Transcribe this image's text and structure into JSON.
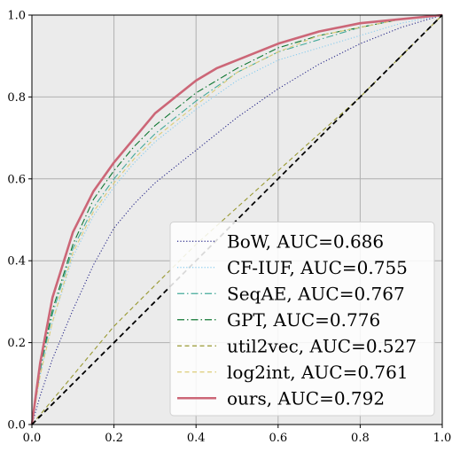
{
  "chart_data": {
    "type": "line",
    "title": "",
    "xlabel": "",
    "ylabel": "",
    "xlim": [
      0,
      1
    ],
    "ylim": [
      0,
      1
    ],
    "xticks": [
      "0.0",
      "0.2",
      "0.4",
      "0.6",
      "0.8",
      "1.0"
    ],
    "yticks": [
      "0.0",
      "0.2",
      "0.4",
      "0.6",
      "0.8",
      "1.0"
    ],
    "grid": true,
    "background": "#ebebeb",
    "legend_position": "lower-right",
    "diagonal": {
      "x": [
        0,
        1
      ],
      "y": [
        0,
        1
      ],
      "color": "#000000",
      "style": "dashed"
    },
    "series": [
      {
        "name": "BoW, AUC=0.686",
        "color": "#2a2a8a",
        "style": "dotted",
        "x": [
          0,
          0.02,
          0.05,
          0.1,
          0.15,
          0.2,
          0.25,
          0.3,
          0.4,
          0.5,
          0.6,
          0.7,
          0.8,
          0.9,
          1.0
        ],
        "y": [
          0,
          0.07,
          0.16,
          0.28,
          0.39,
          0.48,
          0.54,
          0.59,
          0.67,
          0.75,
          0.82,
          0.88,
          0.93,
          0.97,
          1.0
        ]
      },
      {
        "name": "CF-IUF, AUC=0.755",
        "color": "#88ccee",
        "style": "dotted",
        "x": [
          0,
          0.02,
          0.05,
          0.1,
          0.15,
          0.2,
          0.25,
          0.3,
          0.4,
          0.5,
          0.6,
          0.7,
          0.8,
          0.9,
          1.0
        ],
        "y": [
          0,
          0.12,
          0.25,
          0.41,
          0.51,
          0.58,
          0.64,
          0.69,
          0.77,
          0.84,
          0.89,
          0.92,
          0.95,
          0.98,
          1.0
        ]
      },
      {
        "name": "SeqAE, AUC=0.767",
        "color": "#44aa99",
        "style": "dashdot",
        "x": [
          0,
          0.02,
          0.05,
          0.1,
          0.15,
          0.2,
          0.25,
          0.3,
          0.4,
          0.5,
          0.6,
          0.7,
          0.8,
          0.9,
          1.0
        ],
        "y": [
          0,
          0.13,
          0.27,
          0.43,
          0.53,
          0.6,
          0.66,
          0.71,
          0.79,
          0.86,
          0.91,
          0.94,
          0.97,
          0.99,
          1.0
        ]
      },
      {
        "name": "GPT, AUC=0.776",
        "color": "#117733",
        "style": "dashdot",
        "x": [
          0,
          0.02,
          0.05,
          0.1,
          0.15,
          0.2,
          0.25,
          0.3,
          0.4,
          0.5,
          0.6,
          0.7,
          0.8,
          0.9,
          1.0
        ],
        "y": [
          0,
          0.14,
          0.28,
          0.44,
          0.55,
          0.62,
          0.68,
          0.73,
          0.81,
          0.87,
          0.92,
          0.95,
          0.97,
          0.99,
          1.0
        ]
      },
      {
        "name": "util2vec, AUC=0.527",
        "color": "#999933",
        "style": "dashed",
        "x": [
          0,
          0.05,
          0.1,
          0.2,
          0.3,
          0.4,
          0.5,
          0.6,
          0.7,
          0.8,
          0.9,
          1.0
        ],
        "y": [
          0,
          0.06,
          0.12,
          0.24,
          0.34,
          0.44,
          0.53,
          0.62,
          0.71,
          0.8,
          0.9,
          1.0
        ]
      },
      {
        "name": "log2int, AUC=0.761",
        "color": "#ddcc77",
        "style": "dashed",
        "x": [
          0,
          0.02,
          0.05,
          0.1,
          0.15,
          0.2,
          0.25,
          0.3,
          0.4,
          0.5,
          0.6,
          0.7,
          0.8,
          0.9,
          1.0
        ],
        "y": [
          0,
          0.12,
          0.25,
          0.42,
          0.52,
          0.59,
          0.65,
          0.7,
          0.78,
          0.86,
          0.91,
          0.95,
          0.97,
          0.99,
          1.0
        ]
      },
      {
        "name": "ours, AUC=0.792",
        "color": "#cc6677",
        "style": "solid",
        "x": [
          0,
          0.02,
          0.05,
          0.1,
          0.15,
          0.2,
          0.25,
          0.3,
          0.35,
          0.4,
          0.45,
          0.5,
          0.6,
          0.7,
          0.8,
          0.9,
          1.0
        ],
        "y": [
          0,
          0.15,
          0.31,
          0.47,
          0.57,
          0.64,
          0.7,
          0.76,
          0.8,
          0.84,
          0.87,
          0.89,
          0.93,
          0.96,
          0.98,
          0.99,
          1.0
        ]
      }
    ]
  }
}
